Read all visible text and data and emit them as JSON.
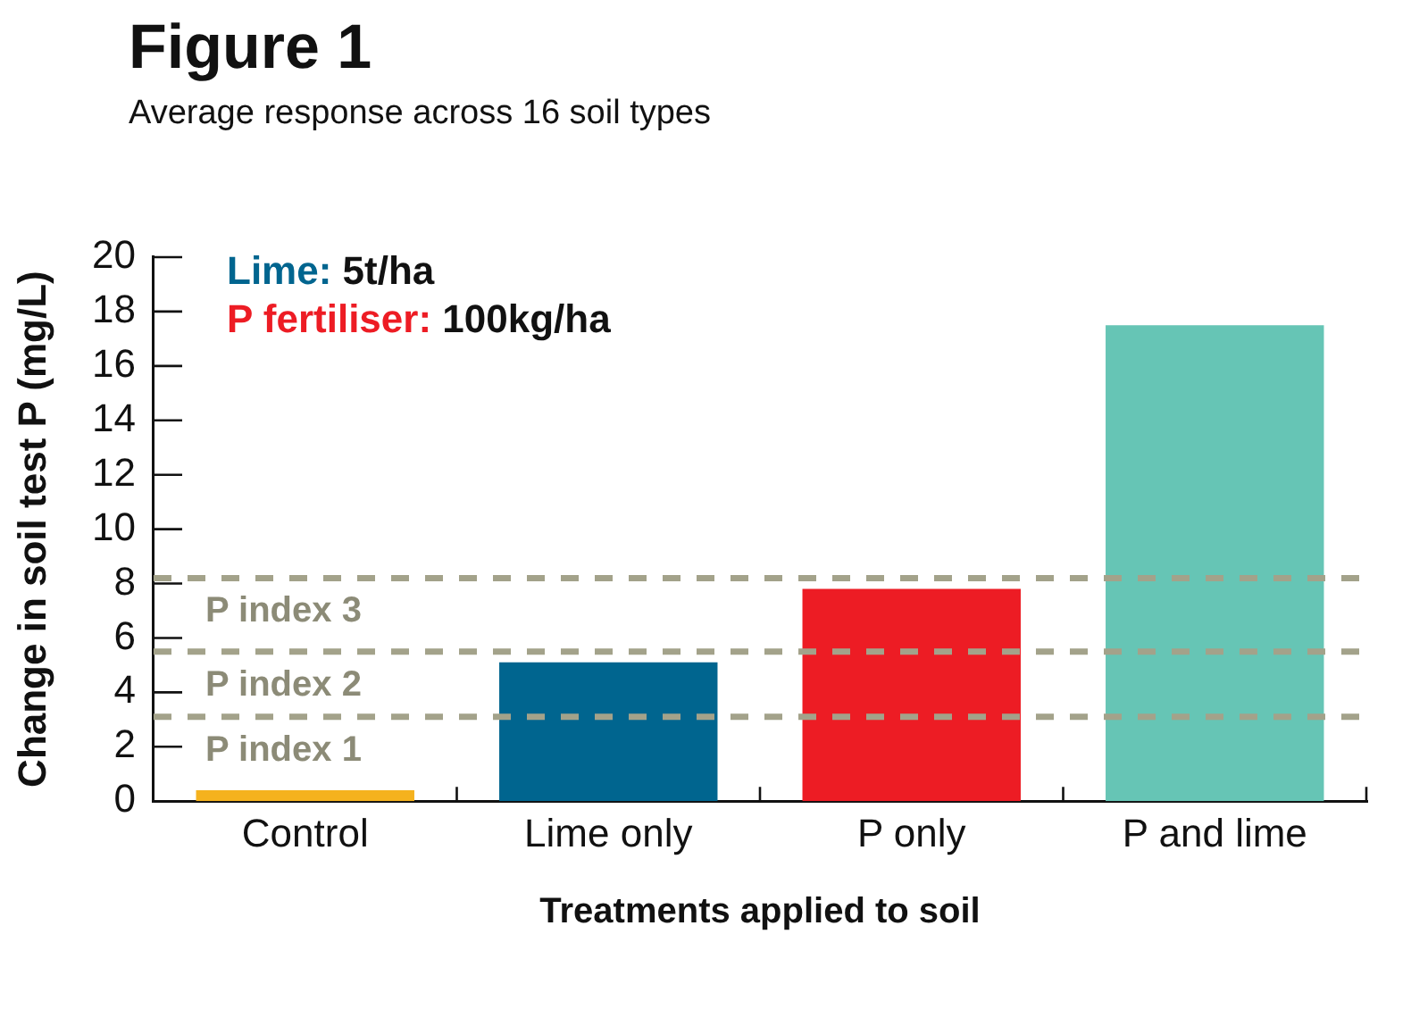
{
  "chart_data": {
    "type": "bar",
    "title": "Figure 1",
    "subtitle": "Average response across 16 soil types",
    "xlabel": "Treatments applied to soil",
    "ylabel": "Change in soil test P (mg/L)",
    "categories": [
      "Control",
      "Lime only",
      "P only",
      "P and lime"
    ],
    "values": [
      0.4,
      5.1,
      7.8,
      17.5
    ],
    "colors": [
      "#f5b21e",
      "#00658f",
      "#ed1c24",
      "#66c5b5"
    ],
    "ylim": [
      0,
      20
    ],
    "yticks": [
      0,
      2,
      4,
      6,
      8,
      10,
      12,
      14,
      16,
      18,
      20
    ],
    "annotations": [
      "Lime: 5t/ha",
      "P fertiliser: 100kg/ha"
    ],
    "ref_lines": [
      {
        "axis": "y",
        "value": 3.1,
        "label": "P index 1",
        "color": "#a3a28a",
        "line_style": "dashed"
      },
      {
        "axis": "y",
        "value": 5.5,
        "label": "P index 2",
        "color": "#a3a28a",
        "line_style": "dashed"
      },
      {
        "axis": "y",
        "value": 8.2,
        "label": "P index 3",
        "color": "#a3a28a",
        "line_style": "dashed"
      }
    ]
  }
}
